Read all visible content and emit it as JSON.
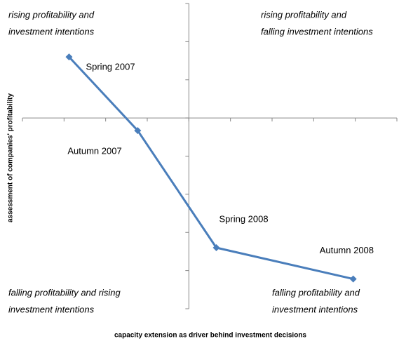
{
  "chart_data": {
    "type": "line",
    "x": [
      -2.88,
      -1.23,
      0.66,
      3.95
    ],
    "series": [
      {
        "color": "#4a7ebb",
        "values": [
          1.6,
          -0.33,
          -3.4,
          -4.22
        ]
      }
    ],
    "point_labels": [
      "Spring 2007",
      "Autumn 2007",
      "Spring 2008",
      "Autumn 2008"
    ],
    "xlim": [
      -4,
      5
    ],
    "xticks": [
      -4,
      -3,
      -2,
      -1,
      0,
      1,
      2,
      3,
      4,
      5
    ],
    "ylim": [
      -5,
      3
    ],
    "yticks": [
      -5,
      -4,
      -3,
      -2,
      -1,
      0,
      1,
      2,
      3
    ],
    "xlabel": "capacity extension as driver behind investment decisions",
    "ylabel": "assessment of companies' profitability",
    "annotations": [
      [
        "rising profitability and",
        "investment intentions"
      ],
      [
        "rising profitability and",
        "falling investment intentions"
      ],
      [
        "falling profitability and  rising",
        "investment intentions"
      ],
      [
        "falling profitability and",
        "investment intentions"
      ]
    ]
  }
}
